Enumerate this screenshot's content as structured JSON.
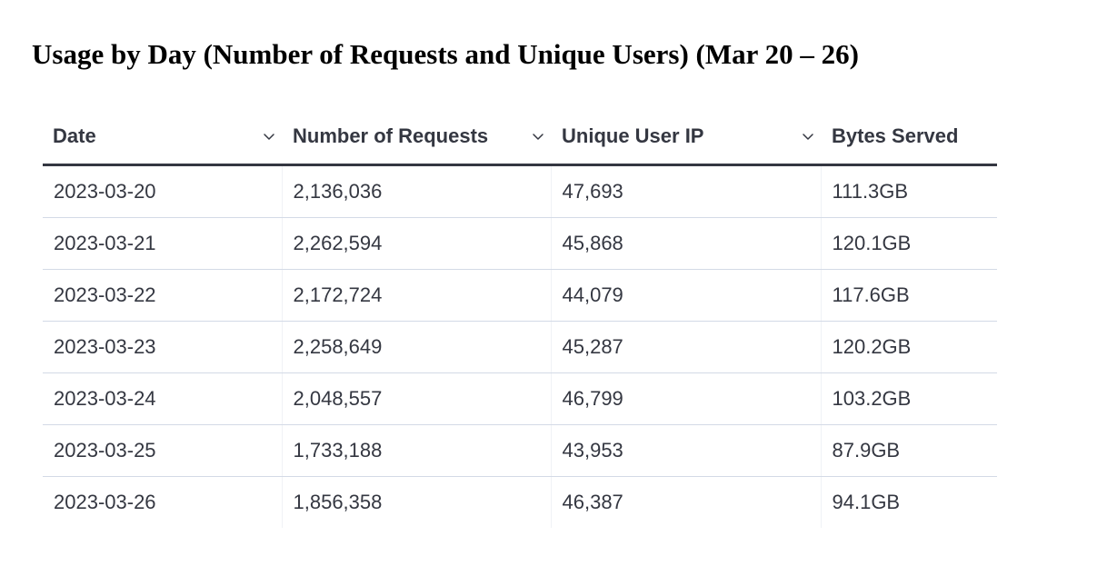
{
  "title": "Usage by Day (Number of Requests and Unique Users) (Mar 20 – 26)",
  "table": {
    "columns": [
      {
        "label": "Date",
        "sort_icon": "chevron-down-icon"
      },
      {
        "label": "Number of Requests",
        "sort_icon": "chevron-down-icon"
      },
      {
        "label": "Unique User IP",
        "sort_icon": "chevron-down-icon"
      },
      {
        "label": "Bytes Served"
      }
    ],
    "rows": [
      [
        "2023-03-20",
        "2,136,036",
        "47,693",
        "111.3GB"
      ],
      [
        "2023-03-21",
        "2,262,594",
        "45,868",
        "120.1GB"
      ],
      [
        "2023-03-22",
        "2,172,724",
        "44,079",
        "117.6GB"
      ],
      [
        "2023-03-23",
        "2,258,649",
        "45,287",
        "120.2GB"
      ],
      [
        "2023-03-24",
        "2,048,557",
        "46,799",
        "103.2GB"
      ],
      [
        "2023-03-25",
        "1,733,188",
        "43,953",
        "87.9GB"
      ],
      [
        "2023-03-26",
        "1,856,358",
        "46,387",
        "94.1GB"
      ]
    ]
  },
  "colors": {
    "text": "#343741",
    "header_rule": "#343741",
    "row_divider": "#d3dae6"
  }
}
